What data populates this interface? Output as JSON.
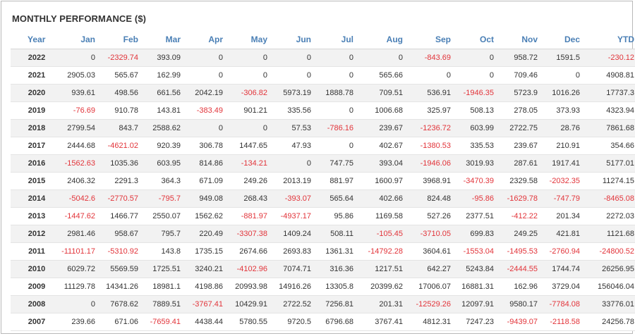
{
  "title": "MONTHLY PERFORMANCE ($)",
  "columns": [
    "Year",
    "Jan",
    "Feb",
    "Mar",
    "Apr",
    "May",
    "Jun",
    "Jul",
    "Aug",
    "Sep",
    "Oct",
    "Nov",
    "Dec",
    "YTD"
  ],
  "rows": [
    {
      "year": "2022",
      "values": [
        "0",
        "-2329.74",
        "393.09",
        "0",
        "0",
        "0",
        "0",
        "0",
        "-843.69",
        "0",
        "958.72",
        "1591.5",
        "-230.12"
      ]
    },
    {
      "year": "2021",
      "values": [
        "2905.03",
        "565.67",
        "162.99",
        "0",
        "0",
        "0",
        "0",
        "565.66",
        "0",
        "0",
        "709.46",
        "0",
        "4908.81"
      ]
    },
    {
      "year": "2020",
      "values": [
        "939.61",
        "498.56",
        "661.56",
        "2042.19",
        "-306.82",
        "5973.19",
        "1888.78",
        "709.51",
        "536.91",
        "-1946.35",
        "5723.9",
        "1016.26",
        "17737.3"
      ]
    },
    {
      "year": "2019",
      "values": [
        "-76.69",
        "910.78",
        "143.81",
        "-383.49",
        "901.21",
        "335.56",
        "0",
        "1006.68",
        "325.97",
        "508.13",
        "278.05",
        "373.93",
        "4323.94"
      ]
    },
    {
      "year": "2018",
      "values": [
        "2799.54",
        "843.7",
        "2588.62",
        "0",
        "0",
        "57.53",
        "-786.16",
        "239.67",
        "-1236.72",
        "603.99",
        "2722.75",
        "28.76",
        "7861.68"
      ]
    },
    {
      "year": "2017",
      "values": [
        "2444.68",
        "-4621.02",
        "920.39",
        "306.78",
        "1447.65",
        "47.93",
        "0",
        "402.67",
        "-1380.53",
        "335.53",
        "239.67",
        "210.91",
        "354.66"
      ]
    },
    {
      "year": "2016",
      "values": [
        "-1562.63",
        "1035.36",
        "603.95",
        "814.86",
        "-134.21",
        "0",
        "747.75",
        "393.04",
        "-1946.06",
        "3019.93",
        "287.61",
        "1917.41",
        "5177.01"
      ]
    },
    {
      "year": "2015",
      "values": [
        "2406.32",
        "2291.3",
        "364.3",
        "671.09",
        "249.26",
        "2013.19",
        "881.97",
        "1600.97",
        "3968.91",
        "-3470.39",
        "2329.58",
        "-2032.35",
        "11274.15"
      ]
    },
    {
      "year": "2014",
      "values": [
        "-5042.6",
        "-2770.57",
        "-795.7",
        "949.08",
        "268.43",
        "-393.07",
        "565.64",
        "402.66",
        "824.48",
        "-95.86",
        "-1629.78",
        "-747.79",
        "-8465.08"
      ]
    },
    {
      "year": "2013",
      "values": [
        "-1447.62",
        "1466.77",
        "2550.07",
        "1562.62",
        "-881.97",
        "-4937.17",
        "95.86",
        "1169.58",
        "527.26",
        "2377.51",
        "-412.22",
        "201.34",
        "2272.03"
      ]
    },
    {
      "year": "2012",
      "values": [
        "2981.46",
        "958.67",
        "795.7",
        "220.49",
        "-3307.38",
        "1409.24",
        "508.11",
        "-105.45",
        "-3710.05",
        "699.83",
        "249.25",
        "421.81",
        "1121.68"
      ]
    },
    {
      "year": "2011",
      "values": [
        "-11101.17",
        "-5310.92",
        "143.8",
        "1735.15",
        "2674.66",
        "2693.83",
        "1361.31",
        "-14792.28",
        "3604.61",
        "-1553.04",
        "-1495.53",
        "-2760.94",
        "-24800.52"
      ]
    },
    {
      "year": "2010",
      "values": [
        "6029.72",
        "5569.59",
        "1725.51",
        "3240.21",
        "-4102.96",
        "7074.71",
        "316.36",
        "1217.51",
        "642.27",
        "5243.84",
        "-2444.55",
        "1744.74",
        "26256.95"
      ]
    },
    {
      "year": "2009",
      "values": [
        "11129.78",
        "14341.26",
        "18981.1",
        "4198.86",
        "20993.98",
        "14916.26",
        "13305.8",
        "20399.62",
        "17006.07",
        "16881.31",
        "162.96",
        "3729.04",
        "156046.04"
      ]
    },
    {
      "year": "2008",
      "values": [
        "0",
        "7678.62",
        "7889.51",
        "-3767.41",
        "10429.91",
        "2722.52",
        "7256.81",
        "201.31",
        "-12529.26",
        "12097.91",
        "9580.17",
        "-7784.08",
        "33776.01"
      ]
    },
    {
      "year": "2007",
      "values": [
        "239.66",
        "671.06",
        "-7659.41",
        "4438.44",
        "5780.55",
        "9720.5",
        "6796.68",
        "3767.41",
        "4812.31",
        "7247.23",
        "-9439.07",
        "-2118.58",
        "24256.78"
      ]
    }
  ],
  "colors": {
    "header": "#4a7fb5",
    "negative": "#e2343a",
    "text": "#333333",
    "stripe": "#f2f2f2"
  }
}
